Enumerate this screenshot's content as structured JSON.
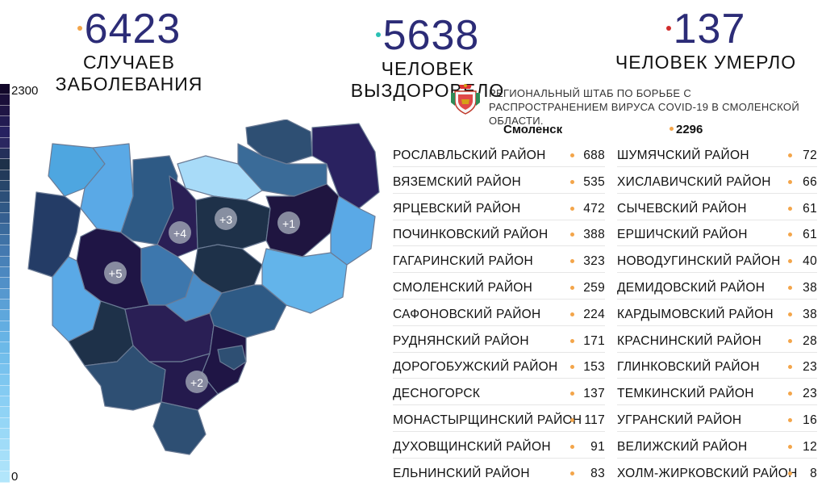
{
  "stats": [
    {
      "value": "6423",
      "label": "СЛУЧАЕВ ЗАБОЛЕВАНИЯ",
      "dot_color": "#f3a54a"
    },
    {
      "value": "5638",
      "label": "ЧЕЛОВЕК ВЫЗДОРОВЕЛО",
      "dot_color": "#2ac0b4"
    },
    {
      "value": "137",
      "label": "ЧЕЛОВЕК УМЕРЛО",
      "dot_color": "#d02c2c"
    }
  ],
  "legend": {
    "max": "2300",
    "min": "0"
  },
  "map_badges": [
    "+5",
    "+4",
    "+3",
    "+1",
    "+2"
  ],
  "hq_text": "РЕГИОНАЛЬНЫЙ ШТАБ ПО БОРЬБЕ С РАСПРОСТРАНЕНИЕМ ВИРУСА  COVID-19 В СМОЛЕНСКОЙ ОБЛАСТИ.",
  "smolensk": {
    "name": "Смоленск",
    "value": "2296"
  },
  "districts_left": [
    {
      "name": "РОСЛАВЛЬСКИЙ РАЙОН",
      "value": "688"
    },
    {
      "name": "ВЯЗЕМСКИЙ РАЙОН",
      "value": "535"
    },
    {
      "name": "ЯРЦЕВСКИЙ РАЙОН",
      "value": "472"
    },
    {
      "name": "ПОЧИНКОВСКИЙ РАЙОН",
      "value": "388"
    },
    {
      "name": "ГАГАРИНСКИЙ РАЙОН",
      "value": "323"
    },
    {
      "name": "СМОЛЕНСКИЙ РАЙОН",
      "value": "259"
    },
    {
      "name": "САФОНОВСКИЙ РАЙОН",
      "value": "224"
    },
    {
      "name": "РУДНЯНСКИЙ РАЙОН",
      "value": "171"
    },
    {
      "name": "ДОРОГОБУЖСКИЙ РАЙОН",
      "value": "153"
    },
    {
      "name": "ДЕСНОГОРСК",
      "value": "137"
    },
    {
      "name": "МОНАСТЫРЩИНСКИЙ РАЙОН",
      "value": "117"
    },
    {
      "name": "ДУХОВЩИНСКИЙ РАЙОН",
      "value": "91"
    },
    {
      "name": "ЕЛЬНИНСКИЙ РАЙОН",
      "value": "83"
    }
  ],
  "districts_right": [
    {
      "name": "ШУМЯЧСКИЙ РАЙОН",
      "value": "72"
    },
    {
      "name": "ХИСЛАВИЧСКИЙ РАЙОН",
      "value": "66"
    },
    {
      "name": "СЫЧЕВСКИЙ РАЙОН",
      "value": "61"
    },
    {
      "name": "ЕРШИЧСКИЙ РАЙОН",
      "value": "61"
    },
    {
      "name": "НОВОДУГИНСКИЙ РАЙОН",
      "value": "40"
    },
    {
      "name": "ДЕМИДОВСКИЙ РАЙОН",
      "value": "38"
    },
    {
      "name": "КАРДЫМОВСКИЙ РАЙОН",
      "value": "38"
    },
    {
      "name": "КРАСНИНСКИЙ РАЙОН",
      "value": "28"
    },
    {
      "name": "ГЛИНКОВСКИЙ РАЙОН",
      "value": "23"
    },
    {
      "name": "ТЕМКИНСКИЙ РАЙОН",
      "value": "23"
    },
    {
      "name": "УГРАНСКИЙ РАЙОН",
      "value": "16"
    },
    {
      "name": "ВЕЛИЖСКИЙ РАЙОН",
      "value": "12"
    },
    {
      "name": "ХОЛМ-ЖИРКОВСКИЙ РАЙОН",
      "value": "8"
    }
  ],
  "colors": {
    "number": "#2c2c77",
    "bullet": "#f3a54a",
    "map_darkest": "#17102f",
    "map_lightest": "#a8dbf8"
  }
}
